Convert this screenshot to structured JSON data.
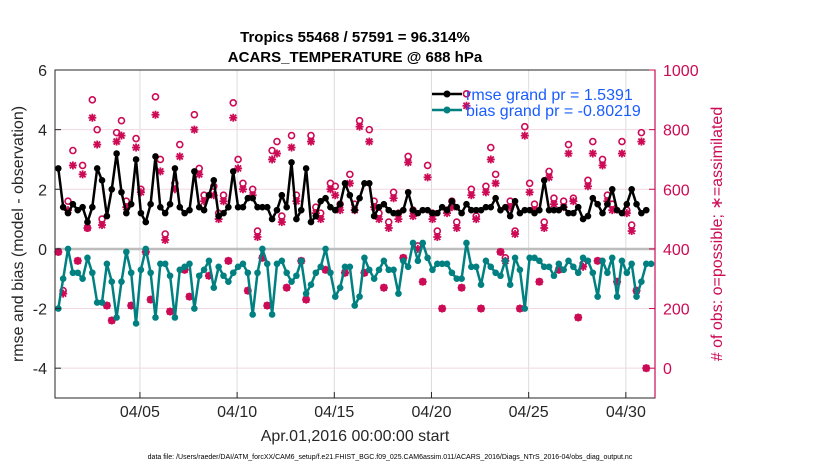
{
  "chart_data": {
    "type": "line",
    "title": [
      "Tropics 55468 / 57591 = 96.314%",
      "ACARS_TEMPERATURE @ 688 hPa"
    ],
    "xlabel": "Apr.01,2016 00:00:00 start",
    "ylabel": "rmse and bias (model - observation)",
    "ylabel_right": "# of obs: o=possible; ∗=assimilated",
    "footer": "data file: /Users/raeder/DAI/ATM_forcXX/CAM6_setup/f.e21.FHIST_BGC.f09_025.CAM6assim.011/ACARS_2016/Diags_NTrS_2016-04/obs_diag_output.nc",
    "xlim_days": [
      -0.37,
      30.5
    ],
    "ylim": [
      -5,
      6
    ],
    "ylim_right": [
      -100,
      1000
    ],
    "x_ticks": [
      {
        "day": 4,
        "label": "04/05"
      },
      {
        "day": 9,
        "label": "04/10"
      },
      {
        "day": 14,
        "label": "04/15"
      },
      {
        "day": 19,
        "label": "04/20"
      },
      {
        "day": 24,
        "label": "04/25"
      },
      {
        "day": 29,
        "label": "04/30"
      }
    ],
    "y_ticks": [
      {
        "v": -4,
        "label": "-4"
      },
      {
        "v": -2,
        "label": "-2"
      },
      {
        "v": 0,
        "label": "0"
      },
      {
        "v": 2,
        "label": "2"
      },
      {
        "v": 4,
        "label": "4"
      },
      {
        "v": 6,
        "label": "6"
      }
    ],
    "y_ticks_right": [
      {
        "v": 0,
        "label": "0"
      },
      {
        "v": 200,
        "label": "200"
      },
      {
        "v": 400,
        "label": "400"
      },
      {
        "v": 600,
        "label": "600"
      },
      {
        "v": 800,
        "label": "800"
      },
      {
        "v": 1000,
        "label": "1000"
      }
    ],
    "grid": true,
    "legend_position": "top-right",
    "t_start_day": -0.2,
    "t_step_day": 0.25,
    "series": [
      {
        "name": "rmse grand pr = 1.5391",
        "color": "#000000",
        "axis": "left",
        "values": [
          2.7,
          1.4,
          1.2,
          1.5,
          1.3,
          1.4,
          0.9,
          1.4,
          2.7,
          2.3,
          1.1,
          2.0,
          3.2,
          1.9,
          1.2,
          1.5,
          3.0,
          1.2,
          0.9,
          1.5,
          3.1,
          1.4,
          1.2,
          1.5,
          2.7,
          1.4,
          1.2,
          1.3,
          2.6,
          1.4,
          1.3,
          1.8,
          2.3,
          1.1,
          1.2,
          1.4,
          2.6,
          1.4,
          1.4,
          1.7,
          1.7,
          1.4,
          1.4,
          1.4,
          1.0,
          1.3,
          1.8,
          1.4,
          2.9,
          1.0,
          1.3,
          2.7,
          0.9,
          1.1,
          1.6,
          1.7,
          1.4,
          1.3,
          1.5,
          2.2,
          1.8,
          1.3,
          1.7,
          2.2,
          2.2,
          1.1,
          1.4,
          1.5,
          1.3,
          1.2,
          1.2,
          1.3,
          1.9,
          1.3,
          1.2,
          1.3,
          1.3,
          1.2,
          1.2,
          1.4,
          1.3,
          1.6,
          1.4,
          1.2,
          1.5,
          1.3,
          1.3,
          1.3,
          1.4,
          1.4,
          1.7,
          1.3,
          1.4,
          1.1,
          1.6,
          1.2,
          1.3,
          1.3,
          1.2,
          1.3,
          2.3,
          1.3,
          1.3,
          1.3,
          1.4,
          1.2,
          1.2,
          1.4,
          1.0,
          1.1,
          1.7,
          1.5,
          1.2,
          1.5,
          2.0,
          1.3,
          1.2,
          1.5,
          2.0,
          1.5,
          1.2,
          1.3
        ]
      },
      {
        "name": "bias grand pr = -0.80219",
        "color": "#008080",
        "axis": "left",
        "values": [
          -2.0,
          -1.0,
          0.0,
          -0.8,
          -0.8,
          -1.0,
          -0.3,
          -0.8,
          -1.8,
          -1.8,
          -0.5,
          -1.1,
          -2.3,
          -1.1,
          -0.1,
          -0.8,
          -2.5,
          -0.7,
          0.0,
          -0.8,
          -2.3,
          -0.5,
          -0.5,
          -0.9,
          -2.3,
          -0.7,
          -0.6,
          -0.5,
          -2.0,
          -0.9,
          -0.7,
          -0.4,
          -1.3,
          -0.6,
          -0.9,
          -1.1,
          -0.8,
          -0.6,
          -0.5,
          -0.8,
          -2.2,
          -0.8,
          0.0,
          -0.5,
          -2.2,
          -0.5,
          -0.4,
          -0.8,
          -1.1,
          -0.9,
          -0.4,
          -1.5,
          -1.2,
          -0.8,
          -0.6,
          0.0,
          -0.8,
          -1.6,
          -1.3,
          -0.6,
          -0.6,
          -1.9,
          -1.6,
          -0.3,
          -0.7,
          -1.0,
          -0.7,
          -0.4,
          -0.7,
          -0.7,
          -1.5,
          -0.4,
          -0.6,
          0.2,
          -0.4,
          0.2,
          -0.3,
          -0.7,
          -0.5,
          -0.5,
          -0.5,
          -0.8,
          -1.0,
          -1.0,
          0.2,
          -0.6,
          -0.6,
          -1.2,
          -0.4,
          -0.6,
          -0.8,
          -0.9,
          -0.4,
          -1.2,
          -0.3,
          -0.7,
          -2.0,
          -0.3,
          -0.3,
          -0.4,
          -0.6,
          -0.6,
          -0.9,
          -0.5,
          -0.7,
          -0.4,
          -0.6,
          -0.8,
          -0.3,
          -0.4,
          -0.8,
          -1.6,
          -0.4,
          -0.8,
          -0.3,
          -1.6,
          -0.4,
          -0.8,
          -0.5,
          -1.6,
          -1.1,
          -0.5,
          -0.5
        ]
      },
      {
        "name": "possible",
        "color": "#cc0a55",
        "axis": "right",
        "marker": "circle",
        "values": [
          390,
          260,
          560,
          730,
          360,
          680,
          470,
          900,
          800,
          500,
          210,
          160,
          790,
          830,
          560,
          210,
          770,
          600,
          390,
          230,
          910,
          700,
          450,
          190,
          620,
          750,
          330,
          240,
          850,
          670,
          580,
          310,
          610,
          520,
          580,
          360,
          890,
          700,
          620,
          260,
          600,
          460,
          370,
          210,
          730,
          760,
          510,
          270,
          780,
          580,
          360,
          230,
          780,
          540,
          520,
          330,
          620,
          610,
          550,
          320,
          650,
          550,
          830,
          320,
          800,
          560,
          520,
          270,
          490,
          590,
          520,
          370,
          710,
          530,
          410,
          290,
          680,
          520,
          460,
          200,
          530,
          560,
          490,
          270,
          920,
          600,
          510,
          200,
          610,
          740,
          650,
          390,
          370,
          560,
          460,
          200,
          810,
          620,
          550,
          290,
          490,
          660,
          570,
          330,
          560,
          750,
          570,
          170,
          350,
          630,
          760,
          360,
          700,
          580,
          550,
          290,
          760,
          530,
          480,
          260,
          790,
          0
        ]
      },
      {
        "name": "assimilated",
        "color": "#cc0a55",
        "axis": "right",
        "marker": "asterisk",
        "values": [
          390,
          250,
          530,
          680,
          360,
          650,
          470,
          840,
          750,
          480,
          210,
          160,
          760,
          780,
          540,
          210,
          740,
          590,
          390,
          230,
          850,
          660,
          430,
          190,
          600,
          710,
          330,
          240,
          800,
          650,
          560,
          310,
          580,
          500,
          560,
          360,
          840,
          670,
          600,
          260,
          580,
          440,
          370,
          210,
          700,
          720,
          490,
          270,
          740,
          560,
          360,
          230,
          760,
          520,
          500,
          330,
          600,
          580,
          530,
          320,
          620,
          530,
          810,
          320,
          760,
          540,
          500,
          270,
          470,
          570,
          500,
          370,
          690,
          510,
          400,
          290,
          640,
          500,
          440,
          200,
          520,
          540,
          470,
          270,
          880,
          580,
          500,
          200,
          590,
          700,
          620,
          390,
          360,
          540,
          450,
          200,
          780,
          590,
          530,
          290,
          470,
          640,
          550,
          330,
          540,
          720,
          560,
          170,
          340,
          610,
          720,
          360,
          680,
          560,
          530,
          290,
          720,
          520,
          460,
          260,
          760,
          0
        ]
      }
    ]
  }
}
